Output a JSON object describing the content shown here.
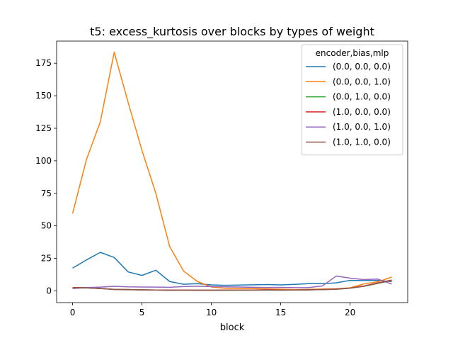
{
  "chart_data": {
    "type": "line",
    "title": "t5: excess_kurtosis over blocks by types of weight",
    "xlabel": "block",
    "ylabel": "",
    "xlim": [
      -1.15,
      24.15
    ],
    "ylim": [
      -9,
      192
    ],
    "xticks": [
      0,
      5,
      10,
      15,
      20
    ],
    "yticks": [
      0,
      25,
      50,
      75,
      100,
      125,
      150,
      175
    ],
    "legend_title": "encoder,bias,mlp",
    "legend_position": "upper-right",
    "grid": false,
    "x": [
      0,
      1,
      2,
      3,
      4,
      5,
      6,
      7,
      8,
      9,
      10,
      11,
      12,
      13,
      14,
      15,
      16,
      17,
      18,
      19,
      20,
      21,
      22,
      23
    ],
    "series": [
      {
        "name": "(0.0, 0.0, 0.0)",
        "color": "#1f77b4",
        "values": [
          17.5,
          23.8,
          29.6,
          25.7,
          14.6,
          11.9,
          15.9,
          7.2,
          5.1,
          5.6,
          4.6,
          4.3,
          4.5,
          4.7,
          4.9,
          4.6,
          5.0,
          5.6,
          5.6,
          6.2,
          8.1,
          8.0,
          8.1,
          7.1
        ]
      },
      {
        "name": "(0.0, 0.0, 1.0)",
        "color": "#ff7f0e",
        "values": [
          59.5,
          101,
          130,
          183.5,
          145,
          108,
          75,
          34,
          15.2,
          7.2,
          3.0,
          2.0,
          1.9,
          1.8,
          1.5,
          1.3,
          1.0,
          1.2,
          1.4,
          1.6,
          2.4,
          5.4,
          7.0,
          10.6
        ]
      },
      {
        "name": "(0.0, 1.0, 0.0)",
        "color": "#2ca02c",
        "values": [
          2.2,
          2.3,
          1.9,
          1.1,
          0.9,
          0.8,
          0.7,
          0.6,
          0.6,
          0.5,
          0.5,
          0.5,
          0.5,
          0.6,
          0.6,
          0.6,
          0.7,
          0.8,
          1.0,
          1.3,
          2.1,
          3.6,
          5.8,
          8.0
        ]
      },
      {
        "name": "(1.0, 0.0, 0.0)",
        "color": "#d62728",
        "values": [
          2.6,
          2.5,
          1.8,
          1.1,
          1.1,
          0.8,
          0.7,
          0.5,
          0.6,
          0.5,
          0.5,
          0.6,
          0.7,
          0.7,
          0.9,
          0.7,
          0.7,
          0.8,
          1.1,
          1.4,
          2.2,
          3.8,
          6.1,
          8.4
        ]
      },
      {
        "name": "(1.0, 0.0, 1.0)",
        "color": "#9467bd",
        "values": [
          1.8,
          2.6,
          2.9,
          3.5,
          3.1,
          3.0,
          2.9,
          2.8,
          3.3,
          3.6,
          3.3,
          3.1,
          3.0,
          2.8,
          2.6,
          2.7,
          2.5,
          2.6,
          3.8,
          11.4,
          9.8,
          8.7,
          9.1,
          5.3
        ]
      },
      {
        "name": "(1.0, 1.0, 0.0)",
        "color": "#8c564b",
        "values": [
          2.4,
          2.3,
          1.8,
          1.2,
          1.0,
          0.8,
          0.7,
          0.5,
          0.6,
          0.5,
          0.5,
          0.5,
          0.6,
          0.6,
          0.7,
          0.6,
          0.7,
          0.8,
          1.0,
          1.3,
          2.1,
          3.6,
          5.9,
          8.1
        ]
      }
    ]
  }
}
